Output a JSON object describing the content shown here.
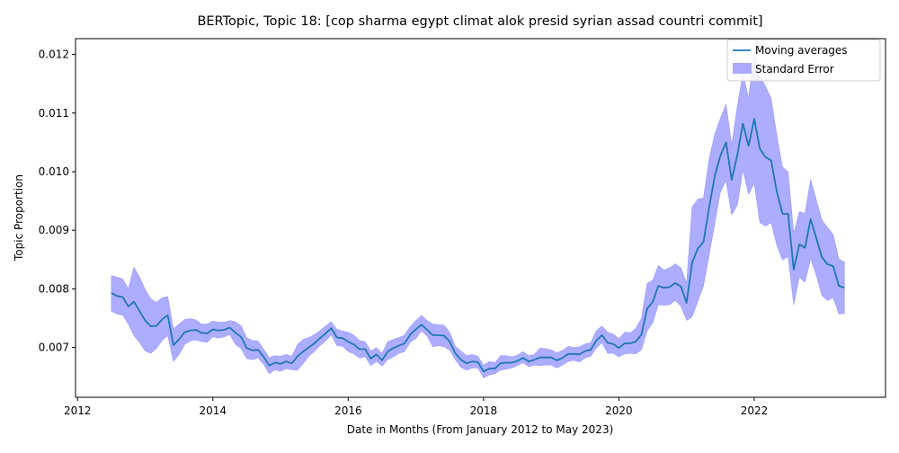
{
  "chart_data": {
    "type": "line",
    "title": "BERTopic, Topic 18: [cop sharma egypt climat alok presid syrian assad countri commit]",
    "xlabel": "Date in Months (From January 2012 to May 2023)",
    "ylabel": "Topic Proportion",
    "xlim": [
      2011.97,
      2023.94
    ],
    "ylim": [
      0.00615,
      0.01227
    ],
    "x_ticks": [
      2012,
      2014,
      2016,
      2018,
      2020,
      2022
    ],
    "y_ticks": [
      "0.007",
      "0.008",
      "0.009",
      "0.010",
      "0.011",
      "0.012"
    ],
    "grid": false,
    "legend_position": "top-right",
    "colors": {
      "line": "#1f77b4",
      "band": "#a9a9ff",
      "band_edge": "#7f7fff"
    },
    "series": [
      {
        "name": "Moving averages",
        "x": [
          2012.5,
          2012.583,
          2012.667,
          2012.75,
          2012.833,
          2012.917,
          2013.0,
          2013.083,
          2013.167,
          2013.25,
          2013.333,
          2013.417,
          2013.5,
          2013.583,
          2013.667,
          2013.75,
          2013.833,
          2013.917,
          2014.0,
          2014.083,
          2014.167,
          2014.25,
          2014.333,
          2014.417,
          2014.5,
          2014.583,
          2014.667,
          2014.75,
          2014.833,
          2014.917,
          2015.0,
          2015.083,
          2015.167,
          2015.25,
          2015.333,
          2015.417,
          2015.5,
          2015.583,
          2015.667,
          2015.75,
          2015.833,
          2015.917,
          2016.0,
          2016.083,
          2016.167,
          2016.25,
          2016.333,
          2016.417,
          2016.5,
          2016.583,
          2016.667,
          2016.75,
          2016.833,
          2016.917,
          2017.0,
          2017.083,
          2017.167,
          2017.25,
          2017.333,
          2017.417,
          2017.5,
          2017.583,
          2017.667,
          2017.75,
          2017.833,
          2017.917,
          2018.0,
          2018.083,
          2018.167,
          2018.25,
          2018.333,
          2018.417,
          2018.5,
          2018.583,
          2018.667,
          2018.75,
          2018.833,
          2018.917,
          2019.0,
          2019.083,
          2019.167,
          2019.25,
          2019.333,
          2019.417,
          2019.5,
          2019.583,
          2019.667,
          2019.75,
          2019.833,
          2019.917,
          2020.0,
          2020.083,
          2020.167,
          2020.25,
          2020.333,
          2020.417,
          2020.5,
          2020.583,
          2020.667,
          2020.75,
          2020.833,
          2020.917,
          2021.0,
          2021.083,
          2021.167,
          2021.25,
          2021.333,
          2021.417,
          2021.5,
          2021.583,
          2021.667,
          2021.75,
          2021.833,
          2021.917,
          2022.0,
          2022.083,
          2022.167,
          2022.25,
          2022.333,
          2022.417,
          2022.5,
          2022.583,
          2022.667,
          2022.75,
          2022.833,
          2022.917,
          2023.0,
          2023.083,
          2023.167,
          2023.25,
          2023.333
        ],
        "y": [
          0.00793,
          0.00788,
          0.00786,
          0.0077,
          0.00778,
          0.00762,
          0.00746,
          0.00736,
          0.00737,
          0.00748,
          0.00755,
          0.00704,
          0.00714,
          0.00726,
          0.00729,
          0.0073,
          0.00725,
          0.00724,
          0.00731,
          0.00729,
          0.0073,
          0.00734,
          0.00725,
          0.00718,
          0.00699,
          0.00695,
          0.00696,
          0.00684,
          0.00669,
          0.00674,
          0.00672,
          0.00676,
          0.00673,
          0.00685,
          0.00693,
          0.007,
          0.00707,
          0.00716,
          0.00724,
          0.00733,
          0.00717,
          0.00716,
          0.0071,
          0.00705,
          0.00697,
          0.00697,
          0.00681,
          0.00688,
          0.00678,
          0.00693,
          0.00699,
          0.00703,
          0.00707,
          0.00722,
          0.00731,
          0.00739,
          0.0073,
          0.00721,
          0.00721,
          0.0072,
          0.0071,
          0.0069,
          0.00679,
          0.00673,
          0.00676,
          0.00675,
          0.00659,
          0.00664,
          0.00664,
          0.00673,
          0.00674,
          0.00674,
          0.00677,
          0.00682,
          0.00676,
          0.00679,
          0.00683,
          0.00683,
          0.00683,
          0.00678,
          0.00682,
          0.00689,
          0.00689,
          0.00688,
          0.00694,
          0.00696,
          0.00712,
          0.00721,
          0.00708,
          0.00706,
          0.00699,
          0.00707,
          0.00707,
          0.0071,
          0.00722,
          0.00766,
          0.00778,
          0.00805,
          0.00802,
          0.00803,
          0.0081,
          0.00804,
          0.00776,
          0.00845,
          0.00869,
          0.0088,
          0.00939,
          0.00993,
          0.01027,
          0.0105,
          0.00986,
          0.01029,
          0.01082,
          0.01044,
          0.0109,
          0.01039,
          0.01025,
          0.01019,
          0.00966,
          0.00928,
          0.00928,
          0.00833,
          0.00876,
          0.0087,
          0.00919,
          0.00887,
          0.00854,
          0.00842,
          0.00839,
          0.00805,
          0.00802
        ]
      },
      {
        "name": "Standard Error",
        "x": [
          2012.5,
          2012.583,
          2012.667,
          2012.75,
          2012.833,
          2012.917,
          2013.0,
          2013.083,
          2013.167,
          2013.25,
          2013.333,
          2013.417,
          2013.5,
          2013.583,
          2013.667,
          2013.75,
          2013.833,
          2013.917,
          2014.0,
          2014.083,
          2014.167,
          2014.25,
          2014.333,
          2014.417,
          2014.5,
          2014.583,
          2014.667,
          2014.75,
          2014.833,
          2014.917,
          2015.0,
          2015.083,
          2015.167,
          2015.25,
          2015.333,
          2015.417,
          2015.5,
          2015.583,
          2015.667,
          2015.75,
          2015.833,
          2015.917,
          2016.0,
          2016.083,
          2016.167,
          2016.25,
          2016.333,
          2016.417,
          2016.5,
          2016.583,
          2016.667,
          2016.75,
          2016.833,
          2016.917,
          2017.0,
          2017.083,
          2017.167,
          2017.25,
          2017.333,
          2017.417,
          2017.5,
          2017.583,
          2017.667,
          2017.75,
          2017.833,
          2017.917,
          2018.0,
          2018.083,
          2018.167,
          2018.25,
          2018.333,
          2018.417,
          2018.5,
          2018.583,
          2018.667,
          2018.75,
          2018.833,
          2018.917,
          2019.0,
          2019.083,
          2019.167,
          2019.25,
          2019.333,
          2019.417,
          2019.5,
          2019.583,
          2019.667,
          2019.75,
          2019.833,
          2019.917,
          2020.0,
          2020.083,
          2020.167,
          2020.25,
          2020.333,
          2020.417,
          2020.5,
          2020.583,
          2020.667,
          2020.75,
          2020.833,
          2020.917,
          2021.0,
          2021.083,
          2021.167,
          2021.25,
          2021.333,
          2021.417,
          2021.5,
          2021.583,
          2021.667,
          2021.75,
          2021.833,
          2021.917,
          2022.0,
          2022.083,
          2022.167,
          2022.25,
          2022.333,
          2022.417,
          2022.5,
          2022.583,
          2022.667,
          2022.75,
          2022.833,
          2022.917,
          2023.0,
          2023.083,
          2023.167,
          2023.25,
          2023.333
        ],
        "lower": [
          0.00762,
          0.00757,
          0.00755,
          0.0074,
          0.0072,
          0.00708,
          0.00694,
          0.0069,
          0.00698,
          0.00712,
          0.0072,
          0.00676,
          0.00688,
          0.00705,
          0.00711,
          0.00713,
          0.0071,
          0.00709,
          0.00718,
          0.00716,
          0.00718,
          0.00722,
          0.00705,
          0.00698,
          0.00681,
          0.00679,
          0.00682,
          0.00671,
          0.00655,
          0.00662,
          0.00659,
          0.00664,
          0.00662,
          0.00661,
          0.00672,
          0.00685,
          0.00693,
          0.00703,
          0.00711,
          0.00721,
          0.00703,
          0.00702,
          0.00693,
          0.00689,
          0.00682,
          0.00684,
          0.00669,
          0.00676,
          0.00668,
          0.00679,
          0.00684,
          0.0069,
          0.00693,
          0.00709,
          0.00715,
          0.00728,
          0.00719,
          0.00701,
          0.00703,
          0.00701,
          0.00695,
          0.00679,
          0.00666,
          0.00661,
          0.00665,
          0.00665,
          0.00648,
          0.00653,
          0.00655,
          0.00661,
          0.00663,
          0.00665,
          0.00669,
          0.00674,
          0.00667,
          0.0067,
          0.00669,
          0.0067,
          0.0067,
          0.00665,
          0.0067,
          0.00676,
          0.00678,
          0.00675,
          0.00682,
          0.00685,
          0.00699,
          0.00708,
          0.0069,
          0.0069,
          0.00684,
          0.00689,
          0.0069,
          0.00689,
          0.00696,
          0.00728,
          0.00742,
          0.00773,
          0.00772,
          0.00773,
          0.0078,
          0.0077,
          0.00746,
          0.00752,
          0.00779,
          0.00805,
          0.00857,
          0.00912,
          0.00965,
          0.00985,
          0.00926,
          0.00943,
          0.01003,
          0.00961,
          0.0098,
          0.00913,
          0.00907,
          0.00913,
          0.00875,
          0.00849,
          0.00855,
          0.00773,
          0.0082,
          0.00811,
          0.00851,
          0.00823,
          0.00789,
          0.0078,
          0.00785,
          0.00757,
          0.00758
        ],
        "upper": [
          0.00823,
          0.0082,
          0.00817,
          0.008,
          0.00837,
          0.0082,
          0.00799,
          0.00783,
          0.00777,
          0.00785,
          0.00787,
          0.00732,
          0.0074,
          0.00748,
          0.00749,
          0.00747,
          0.0074,
          0.0074,
          0.00745,
          0.00743,
          0.00743,
          0.00746,
          0.00744,
          0.00737,
          0.00717,
          0.00712,
          0.00711,
          0.00697,
          0.00683,
          0.00686,
          0.00685,
          0.00688,
          0.00685,
          0.00705,
          0.00714,
          0.00717,
          0.00722,
          0.00729,
          0.00737,
          0.00744,
          0.00731,
          0.00728,
          0.00726,
          0.00721,
          0.00712,
          0.0071,
          0.00694,
          0.007,
          0.0069,
          0.0071,
          0.00714,
          0.00717,
          0.00721,
          0.00736,
          0.00746,
          0.00755,
          0.00746,
          0.0074,
          0.00739,
          0.00738,
          0.00726,
          0.00702,
          0.00694,
          0.00686,
          0.00688,
          0.00685,
          0.0067,
          0.00676,
          0.00674,
          0.00686,
          0.00686,
          0.00684,
          0.00687,
          0.00693,
          0.00686,
          0.00688,
          0.00699,
          0.00698,
          0.00696,
          0.00691,
          0.00695,
          0.00702,
          0.007,
          0.00701,
          0.00706,
          0.00708,
          0.00729,
          0.00737,
          0.00726,
          0.00723,
          0.00715,
          0.00726,
          0.00725,
          0.00733,
          0.0075,
          0.00809,
          0.00815,
          0.0084,
          0.00832,
          0.00836,
          0.00843,
          0.00836,
          0.0081,
          0.0094,
          0.00953,
          0.00955,
          0.01022,
          0.01064,
          0.01091,
          0.01115,
          0.01046,
          0.01112,
          0.01168,
          0.01126,
          0.01204,
          0.01163,
          0.01146,
          0.01125,
          0.01063,
          0.01008,
          0.01,
          0.00895,
          0.00932,
          0.00929,
          0.00987,
          0.00952,
          0.00918,
          0.00905,
          0.00893,
          0.00851,
          0.00846
        ]
      }
    ]
  }
}
